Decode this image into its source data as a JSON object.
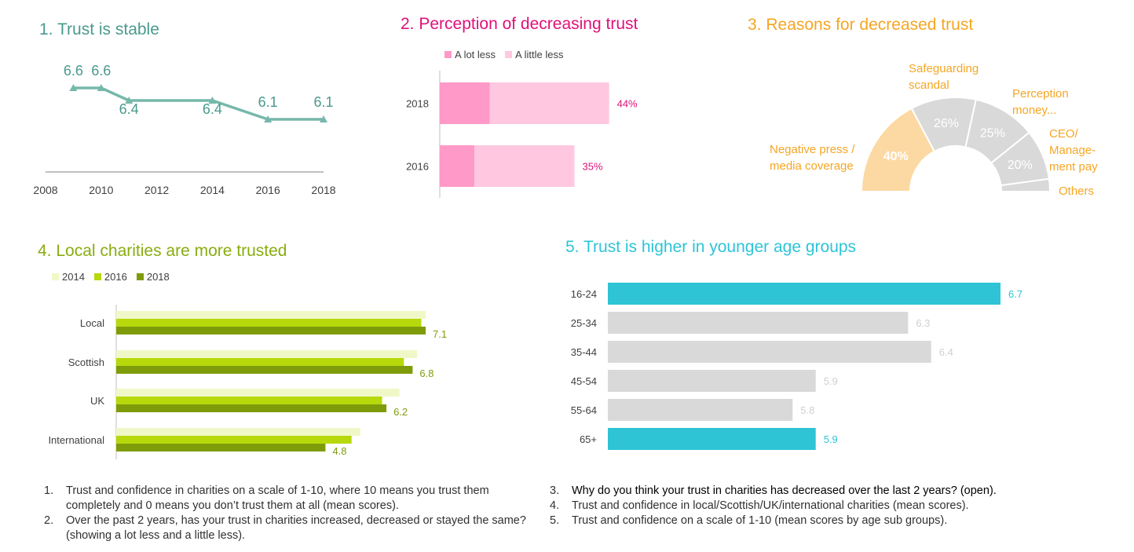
{
  "chart_data": [
    {
      "id": "trust-stable",
      "type": "line",
      "title": "1. Trust is stable",
      "x": [
        2009,
        2010,
        2011,
        2014,
        2016,
        2018
      ],
      "values": [
        6.6,
        6.6,
        6.4,
        6.4,
        6.1,
        6.1
      ],
      "value_labels": [
        "6.6",
        "6.6",
        "6.4",
        "6.4",
        "6.1",
        "6.1"
      ],
      "x_ticks": [
        "2008",
        "2010",
        "2012",
        "2014",
        "2016",
        "2018"
      ],
      "x_tick_values": [
        2008,
        2010,
        2012,
        2014,
        2016,
        2018
      ],
      "xlim": [
        2008,
        2018
      ],
      "ylim": [
        5.5,
        7.0
      ],
      "colors": {
        "title": "#4a9a8e",
        "line": "#76b8aa",
        "label": "#4a9a8e"
      }
    },
    {
      "id": "decreasing-trust",
      "type": "bar",
      "orientation": "horizontal",
      "stacked": true,
      "title": "2. Perception of decreasing trust",
      "categories": [
        "2018",
        "2016"
      ],
      "series": [
        {
          "name": "A lot less",
          "values": [
            13,
            9
          ],
          "color": "#ff99c8"
        },
        {
          "name": "A little less",
          "values": [
            31,
            26
          ],
          "color": "#ffc8e0"
        }
      ],
      "total_labels": [
        "44%",
        "35%"
      ],
      "xlim": [
        0,
        100
      ],
      "colors": {
        "title": "#e0107a",
        "label": "#e0107a"
      }
    },
    {
      "id": "reasons",
      "type": "pie",
      "shape": "half-donut",
      "title": "3. Reasons for decreased trust",
      "slices": [
        {
          "label": "Negative press / media coverage",
          "value": 40,
          "pct_label": "40%",
          "color": "#fcd9a2"
        },
        {
          "label": "Safeguarding scandal",
          "value": 26,
          "pct_label": "26%",
          "color": "#d9d9d9"
        },
        {
          "label": "Perception money...",
          "value": 25,
          "pct_label": "25%",
          "color": "#d9d9d9"
        },
        {
          "label": "CEO/ Manage- ment pay",
          "value": 20,
          "pct_label": "20%",
          "color": "#d9d9d9"
        },
        {
          "label": "Others",
          "value": 5,
          "pct_label": "",
          "color": "#d9d9d9"
        }
      ],
      "colors": {
        "title": "#f5a623",
        "label": "#f5a623",
        "pct": "#ffffff"
      }
    },
    {
      "id": "local-trusted",
      "type": "bar",
      "orientation": "horizontal",
      "title": "4. Local charities are more trusted",
      "categories": [
        "Local",
        "Scottish",
        "UK",
        "International"
      ],
      "series": [
        {
          "name": "2014",
          "values": [
            7.1,
            6.9,
            6.5,
            5.6
          ],
          "color": "#f0f8c8"
        },
        {
          "name": "2016",
          "values": [
            7.0,
            6.6,
            6.1,
            5.4
          ],
          "color": "#b7d90c"
        },
        {
          "name": "2018",
          "values": [
            7.1,
            6.8,
            6.2,
            4.8
          ],
          "color": "#7e9c0a"
        }
      ],
      "value_labels": [
        "7.1",
        "6.8",
        "6.2",
        "4.8"
      ],
      "xlim": [
        0,
        10
      ],
      "colors": {
        "title": "#8aac10",
        "label": "#7e9c0a"
      }
    },
    {
      "id": "age-groups",
      "type": "bar",
      "orientation": "horizontal",
      "title": "5. Trust is higher in younger age groups",
      "categories": [
        "16-24",
        "25-34",
        "35-44",
        "45-54",
        "55-64",
        "65+"
      ],
      "values": [
        6.7,
        6.3,
        6.4,
        5.9,
        5.8,
        5.9
      ],
      "value_labels": [
        "6.7",
        "6.3",
        "6.4",
        "5.9",
        "5.8",
        "5.9"
      ],
      "highlight": [
        true,
        false,
        false,
        false,
        false,
        true
      ],
      "xlim": [
        5.0,
        6.7
      ],
      "colors": {
        "title": "#2ec4d6",
        "highlight": "#2ec4d6",
        "bar": "#d9d9d9",
        "muted_label": "#d0d0d0"
      }
    }
  ],
  "footnotes": {
    "left": [
      {
        "num": "1.",
        "text": "Trust and confidence in charities on a scale of 1-10, where 10 means you trust them completely and 0 means you don’t trust them at all (mean scores)."
      },
      {
        "num": "2.",
        "text": "Over the past 2 years, has your trust in charities increased, decreased or stayed the same? (showing a lot less and a little less)."
      }
    ],
    "right": [
      {
        "num": "3.",
        "text": "Why do you think your trust in charities has decreased over the last 2 years? (open)."
      },
      {
        "num": "4.",
        "text": "Trust and confidence in local/Scottish/UK/international charities (mean scores)."
      },
      {
        "num": "5.",
        "text": "Trust and confidence on a scale of 1-10 (mean scores by age sub groups)."
      }
    ]
  }
}
